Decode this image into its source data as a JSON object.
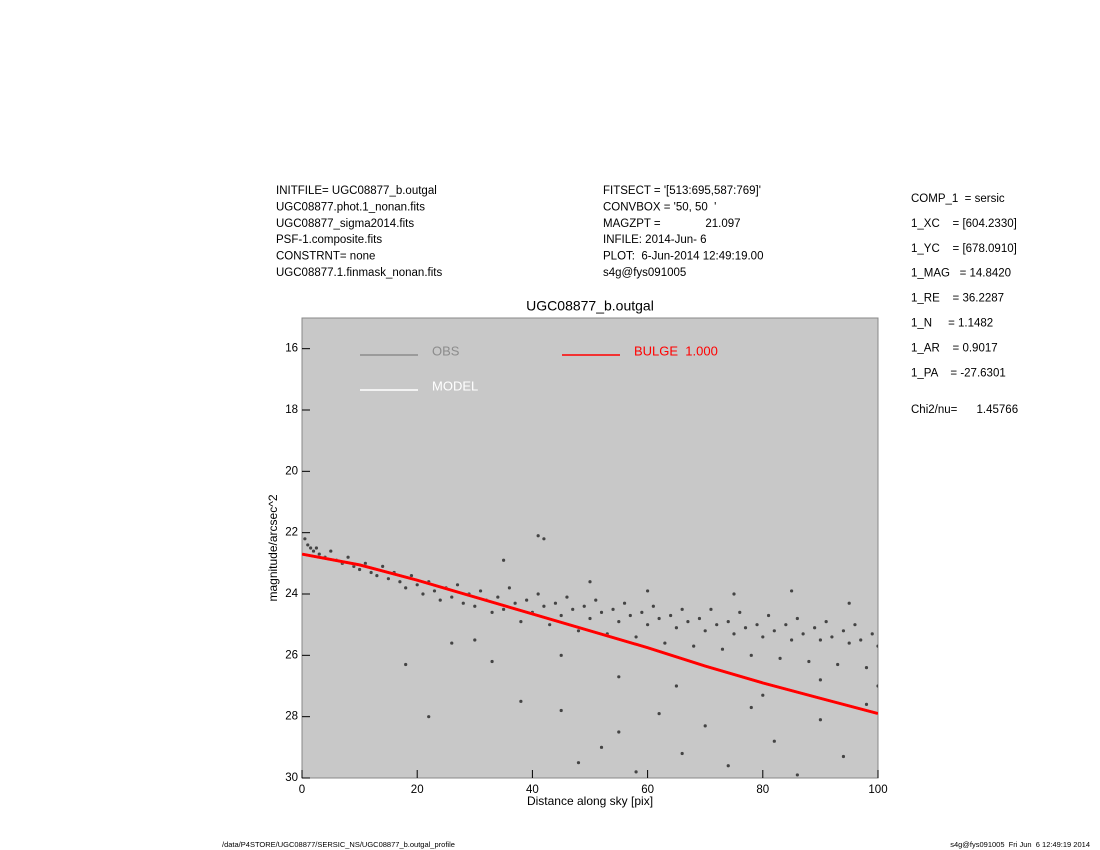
{
  "header": {
    "left": [
      "INITFILE= UGC08877_b.outgal",
      "UGC08877.phot.1_nonan.fits",
      "UGC08877_sigma2014.fits",
      "PSF-1.composite.fits",
      "CONSTRNT= none",
      "UGC08877.1.finmask_nonan.fits"
    ],
    "middle": [
      "FITSECT = '[513:695,587:769]'",
      "CONVBOX = '50, 50  '",
      "MAGZPT =              21.097",
      "INFILE: 2014-Jun- 6",
      "PLOT:  6-Jun-2014 12:49:19.00",
      "s4g@fys091005"
    ],
    "components": [
      "COMP_1  = sersic",
      "1_XC    = [604.2330]",
      "1_YC    = [678.0910]",
      "1_MAG   = 14.8420",
      "1_RE    = 36.2287",
      "1_N     = 1.1482",
      "1_AR    = 0.9017",
      "1_PA    = -27.6301",
      "Chi2/nu=      1.45766"
    ]
  },
  "footer": {
    "left": "/data/P4STORE/UGC08877/SERSIC_NS/UGC08877_b.outgal_profile",
    "right": "s4g@fys091005  Fri Jun  6 12:49:19 2014"
  },
  "chart_data": {
    "type": "scatter",
    "title": "UGC08877_b.outgal",
    "xlabel": "Distance along sky [pix]",
    "ylabel": "magnitude/arcsec^2",
    "xlim": [
      0,
      100
    ],
    "ylim": [
      30,
      15
    ],
    "xticks": [
      0,
      20,
      40,
      60,
      80,
      100
    ],
    "yticks": [
      16,
      18,
      20,
      22,
      24,
      26,
      28,
      30
    ],
    "background": "#c8c8c8",
    "series": [
      {
        "name": "OBS",
        "type": "scatter",
        "color": "#444444",
        "legend_color": "#8c8c8c",
        "x": [
          0.5,
          1,
          1.5,
          2,
          2.5,
          3,
          4,
          5,
          6,
          7,
          8,
          9,
          10,
          11,
          12,
          13,
          14,
          15,
          16,
          17,
          18,
          19,
          20,
          21,
          22,
          23,
          24,
          25,
          26,
          27,
          28,
          29,
          30,
          31,
          32,
          33,
          34,
          35,
          36,
          37,
          38,
          39,
          40,
          41,
          42,
          43,
          44,
          45,
          46,
          47,
          48,
          49,
          50,
          51,
          52,
          53,
          54,
          55,
          56,
          57,
          58,
          59,
          60,
          61,
          62,
          63,
          64,
          65,
          66,
          67,
          68,
          69,
          70,
          71,
          72,
          73,
          74,
          75,
          76,
          77,
          78,
          79,
          80,
          81,
          82,
          83,
          84,
          85,
          86,
          87,
          88,
          89,
          90,
          91,
          92,
          93,
          94,
          95,
          96,
          97,
          98,
          99,
          100,
          18,
          22,
          26,
          33,
          38,
          41,
          42,
          45,
          48,
          52,
          55,
          58,
          62,
          66,
          70,
          74,
          78,
          82,
          86,
          90,
          94,
          98,
          35,
          50,
          60,
          75,
          85,
          95,
          30,
          45,
          55,
          65,
          80,
          90,
          100
        ],
        "values": [
          22.2,
          22.4,
          22.5,
          22.6,
          22.5,
          22.7,
          22.8,
          22.6,
          22.9,
          23.0,
          22.8,
          23.1,
          23.2,
          23.0,
          23.3,
          23.4,
          23.1,
          23.5,
          23.3,
          23.6,
          23.8,
          23.4,
          23.7,
          24.0,
          23.6,
          23.9,
          24.2,
          23.8,
          24.1,
          23.7,
          24.3,
          24.0,
          24.4,
          23.9,
          24.2,
          24.6,
          24.1,
          24.5,
          23.8,
          24.3,
          24.9,
          24.2,
          24.6,
          24.0,
          24.4,
          25.0,
          24.3,
          24.7,
          24.1,
          24.5,
          25.2,
          24.4,
          24.8,
          24.2,
          24.6,
          25.3,
          24.5,
          24.9,
          24.3,
          24.7,
          25.4,
          24.6,
          25.0,
          24.4,
          24.8,
          25.6,
          24.7,
          25.1,
          24.5,
          24.9,
          25.7,
          24.8,
          25.2,
          24.5,
          25.0,
          25.8,
          24.9,
          25.3,
          24.6,
          25.1,
          26.0,
          25.0,
          25.4,
          24.7,
          25.2,
          26.1,
          25.0,
          25.5,
          24.8,
          25.3,
          26.2,
          25.1,
          25.5,
          24.9,
          25.4,
          26.3,
          25.2,
          25.6,
          25.0,
          25.5,
          26.4,
          25.3,
          25.7,
          26.3,
          28.0,
          25.6,
          26.2,
          27.5,
          22.1,
          22.2,
          27.8,
          29.5,
          29.0,
          28.5,
          29.8,
          27.9,
          29.2,
          28.3,
          29.6,
          27.7,
          28.8,
          29.9,
          28.1,
          29.3,
          27.6,
          22.9,
          23.6,
          23.9,
          24.0,
          23.9,
          24.3,
          25.5,
          26.0,
          26.7,
          27.0,
          27.3,
          26.8,
          27.0
        ]
      },
      {
        "name": "MODEL",
        "type": "line",
        "color": "#ffffff",
        "x": [
          0,
          10,
          20,
          30,
          40,
          50,
          60,
          70,
          80,
          90,
          100
        ],
        "values": [
          22.7,
          23.05,
          23.55,
          24.1,
          24.65,
          25.2,
          25.75,
          26.35,
          26.9,
          27.4,
          27.9
        ]
      },
      {
        "name": "BULGE  1.000",
        "type": "line",
        "color": "#ff0000",
        "x": [
          0,
          10,
          20,
          30,
          40,
          50,
          60,
          70,
          80,
          90,
          100
        ],
        "values": [
          22.7,
          23.05,
          23.55,
          24.1,
          24.65,
          25.2,
          25.75,
          26.35,
          26.9,
          27.4,
          27.9
        ]
      }
    ]
  }
}
